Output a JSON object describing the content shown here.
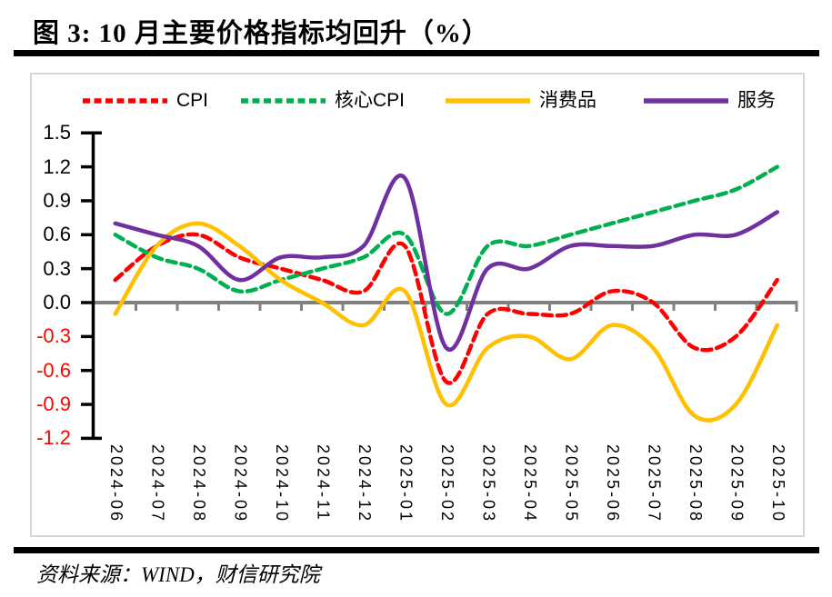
{
  "header": {
    "title": "图 3:  10 月主要价格指标均回升（%）"
  },
  "footer": {
    "source_note": "资料来源：WIND，财信研究院"
  },
  "chart_data": {
    "type": "line",
    "title": "10 月主要价格指标均回升（%）",
    "categories": [
      "2024-06",
      "2024-07",
      "2024-08",
      "2024-09",
      "2024-10",
      "2024-11",
      "2024-12",
      "2025-01",
      "2025-02",
      "2025-03",
      "2025-04",
      "2025-05",
      "2025-06",
      "2025-07",
      "2025-08",
      "2025-09",
      "2025-10"
    ],
    "series": [
      {
        "name": "CPI",
        "color": "#ff0000",
        "style": "dashed",
        "values": [
          0.2,
          0.5,
          0.6,
          0.4,
          0.3,
          0.2,
          0.1,
          0.5,
          -0.7,
          -0.1,
          -0.1,
          -0.1,
          0.1,
          0.0,
          -0.4,
          -0.3,
          0.2
        ]
      },
      {
        "name": "核心CPI",
        "color": "#00b050",
        "style": "dashed",
        "values": [
          0.6,
          0.4,
          0.3,
          0.1,
          0.2,
          0.3,
          0.4,
          0.6,
          -0.1,
          0.5,
          0.5,
          0.6,
          0.7,
          0.8,
          0.9,
          1.0,
          1.2
        ]
      },
      {
        "name": "消费品",
        "color": "#ffc000",
        "style": "solid",
        "values": [
          -0.1,
          0.5,
          0.7,
          0.5,
          0.2,
          0.0,
          -0.2,
          0.1,
          -0.9,
          -0.4,
          -0.3,
          -0.5,
          -0.2,
          -0.4,
          -1.0,
          -0.9,
          -0.2
        ]
      },
      {
        "name": "服务",
        "color": "#7030a0",
        "style": "solid",
        "values": [
          0.7,
          0.6,
          0.5,
          0.2,
          0.4,
          0.4,
          0.5,
          1.1,
          -0.4,
          0.3,
          0.3,
          0.5,
          0.5,
          0.5,
          0.6,
          0.6,
          0.8
        ]
      }
    ],
    "ylim": [
      -1.2,
      1.5
    ],
    "yticks": [
      1.5,
      1.2,
      0.9,
      0.6,
      0.3,
      0.0,
      -0.3,
      -0.6,
      -0.9,
      -1.2
    ],
    "xlabel": "",
    "ylabel": "",
    "grid": false,
    "legend_position": "top",
    "line_shape": "spline",
    "colors": {
      "axis": "#000000",
      "zero_line": "#808080",
      "negative_tick_label": "#ff0000",
      "frame_border": "#d6d6d6"
    }
  }
}
